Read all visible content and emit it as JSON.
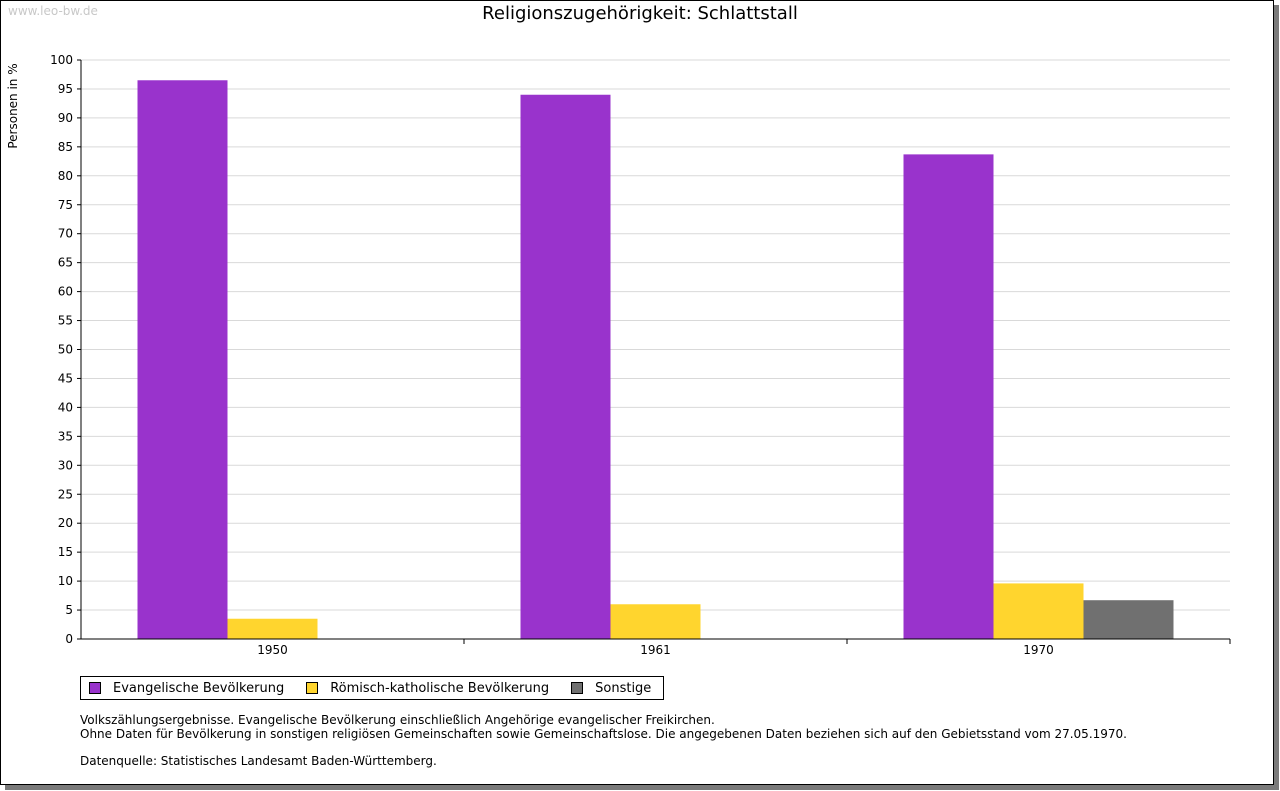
{
  "watermark": "www.leo-bw.de",
  "chart_data": {
    "type": "bar",
    "title": "Religionszugehörigkeit: Schlattstall",
    "xlabel": "",
    "ylabel": "Personen in %",
    "ylim": [
      0,
      100
    ],
    "ytick_step": 5,
    "grid": true,
    "categories": [
      "1950",
      "1961",
      "1970"
    ],
    "series": [
      {
        "name": "Evangelische Bevölkerung",
        "color": "#9933cc",
        "values": [
          96.5,
          94.0,
          83.7
        ]
      },
      {
        "name": "Römisch-katholische Bevölkerung",
        "color": "#ffd52e",
        "values": [
          3.5,
          6.0,
          9.6
        ]
      },
      {
        "name": "Sonstige",
        "color": "#707070",
        "values": [
          0,
          0,
          6.7
        ]
      }
    ],
    "legend_position": "bottom-left"
  },
  "notes": {
    "line1": "Volkszählungsergebnisse. Evangelische Bevölkerung einschließlich Angehörige evangelischer Freikirchen.",
    "line2": "Ohne Daten für Bevölkerung in sonstigen religiösen Gemeinschaften sowie Gemeinschaftslose. Die angegebenen Daten beziehen sich auf den Gebietsstand vom 27.05.1970.",
    "source": "Datenquelle: Statistisches Landesamt Baden-Württemberg."
  }
}
